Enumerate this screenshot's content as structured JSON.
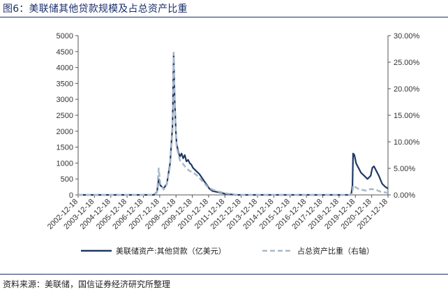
{
  "header": {
    "title": "图6：美联储其他贷款规模及占总资产比重"
  },
  "footer": {
    "source": "资料来源：美联储，国信证券经济研究所整理"
  },
  "colors": {
    "series_main": "#1f3864",
    "series_ratio": "#a9b7c9",
    "axis": "#555555",
    "title": "#1b2f6b"
  },
  "chart_data": {
    "type": "line",
    "title": "",
    "xlabel": "",
    "ylabel": "",
    "x_tick_labels": [
      "2002-12-18",
      "2003-12-18",
      "2004-12-18",
      "2005-12-18",
      "2006-12-18",
      "2007-12-18",
      "2008-12-18",
      "2009-12-18",
      "2010-12-18",
      "2011-12-18",
      "2012-12-18",
      "2013-12-18",
      "2014-12-18",
      "2015-12-18",
      "2016-12-18",
      "2017-12-18",
      "2018-12-18",
      "2019-12-18",
      "2020-12-18",
      "2021-12-18"
    ],
    "y_left": {
      "min": 0,
      "max": 5000,
      "ticks": [
        "0",
        "500",
        "1000",
        "1500",
        "2000",
        "2500",
        "3000",
        "3500",
        "4000",
        "4500",
        "5000"
      ]
    },
    "y_right": {
      "min": 0,
      "max": 30,
      "ticks": [
        "0.00%",
        "5.00%",
        "10.00%",
        "15.00%",
        "20.00%",
        "25.00%",
        "30.00%"
      ]
    },
    "legend_position": "bottom",
    "series": [
      {
        "name": "美联储资产:其他贷款（亿美元）",
        "axis": "left",
        "style": "solid",
        "x": [
          2002.96,
          2007.6,
          2007.8,
          2007.9,
          2008.0,
          2008.2,
          2008.4,
          2008.6,
          2008.75,
          2008.82,
          2008.88,
          2008.95,
          2009.0,
          2009.1,
          2009.2,
          2009.3,
          2009.4,
          2009.5,
          2009.6,
          2009.7,
          2009.8,
          2009.9,
          2010.0,
          2010.2,
          2010.4,
          2010.6,
          2010.8,
          2011.0,
          2011.2,
          2011.5,
          2011.8,
          2012.0,
          2012.4,
          2012.6,
          2012.96,
          2019.7,
          2019.78,
          2019.82,
          2019.9,
          2020.0,
          2020.1,
          2020.2,
          2020.3,
          2020.5,
          2020.7,
          2020.9,
          2021.0,
          2021.1,
          2021.2,
          2021.4,
          2021.6,
          2021.8,
          2021.96
        ],
        "y": [
          0,
          0,
          100,
          500,
          300,
          200,
          350,
          1000,
          2200,
          4450,
          3000,
          2000,
          1600,
          1350,
          1200,
          1300,
          1150,
          1250,
          1050,
          1100,
          1000,
          950,
          850,
          750,
          650,
          500,
          350,
          200,
          120,
          90,
          60,
          30,
          10,
          0,
          0,
          0,
          300,
          1300,
          1250,
          1000,
          900,
          800,
          700,
          600,
          500,
          600,
          850,
          900,
          800,
          600,
          350,
          250,
          200
        ]
      },
      {
        "name": "占总资产比重（右轴）",
        "axis": "right",
        "style": "dashed",
        "x": [
          2002.96,
          2007.6,
          2007.8,
          2007.9,
          2008.0,
          2008.2,
          2008.4,
          2008.6,
          2008.75,
          2008.82,
          2008.88,
          2008.95,
          2009.0,
          2009.2,
          2009.4,
          2009.6,
          2009.8,
          2010.0,
          2010.3,
          2010.6,
          2010.9,
          2011.2,
          2011.6,
          2012.0,
          2012.6,
          2012.96,
          2019.7,
          2019.78,
          2019.82,
          2019.9,
          2020.1,
          2020.3,
          2020.6,
          2020.9,
          2021.2,
          2021.5,
          2021.96
        ],
        "y": [
          0,
          0,
          0.5,
          5.0,
          2.0,
          1.0,
          2.0,
          5.5,
          12.5,
          26.8,
          17.0,
          11.5,
          9.0,
          6.5,
          5.8,
          5.0,
          4.5,
          4.3,
          3.5,
          2.5,
          1.5,
          1.0,
          0.6,
          0.3,
          0.05,
          0,
          0,
          0.3,
          1.8,
          1.6,
          1.2,
          1.0,
          0.8,
          1.1,
          1.0,
          0.6,
          0.4
        ]
      }
    ]
  }
}
